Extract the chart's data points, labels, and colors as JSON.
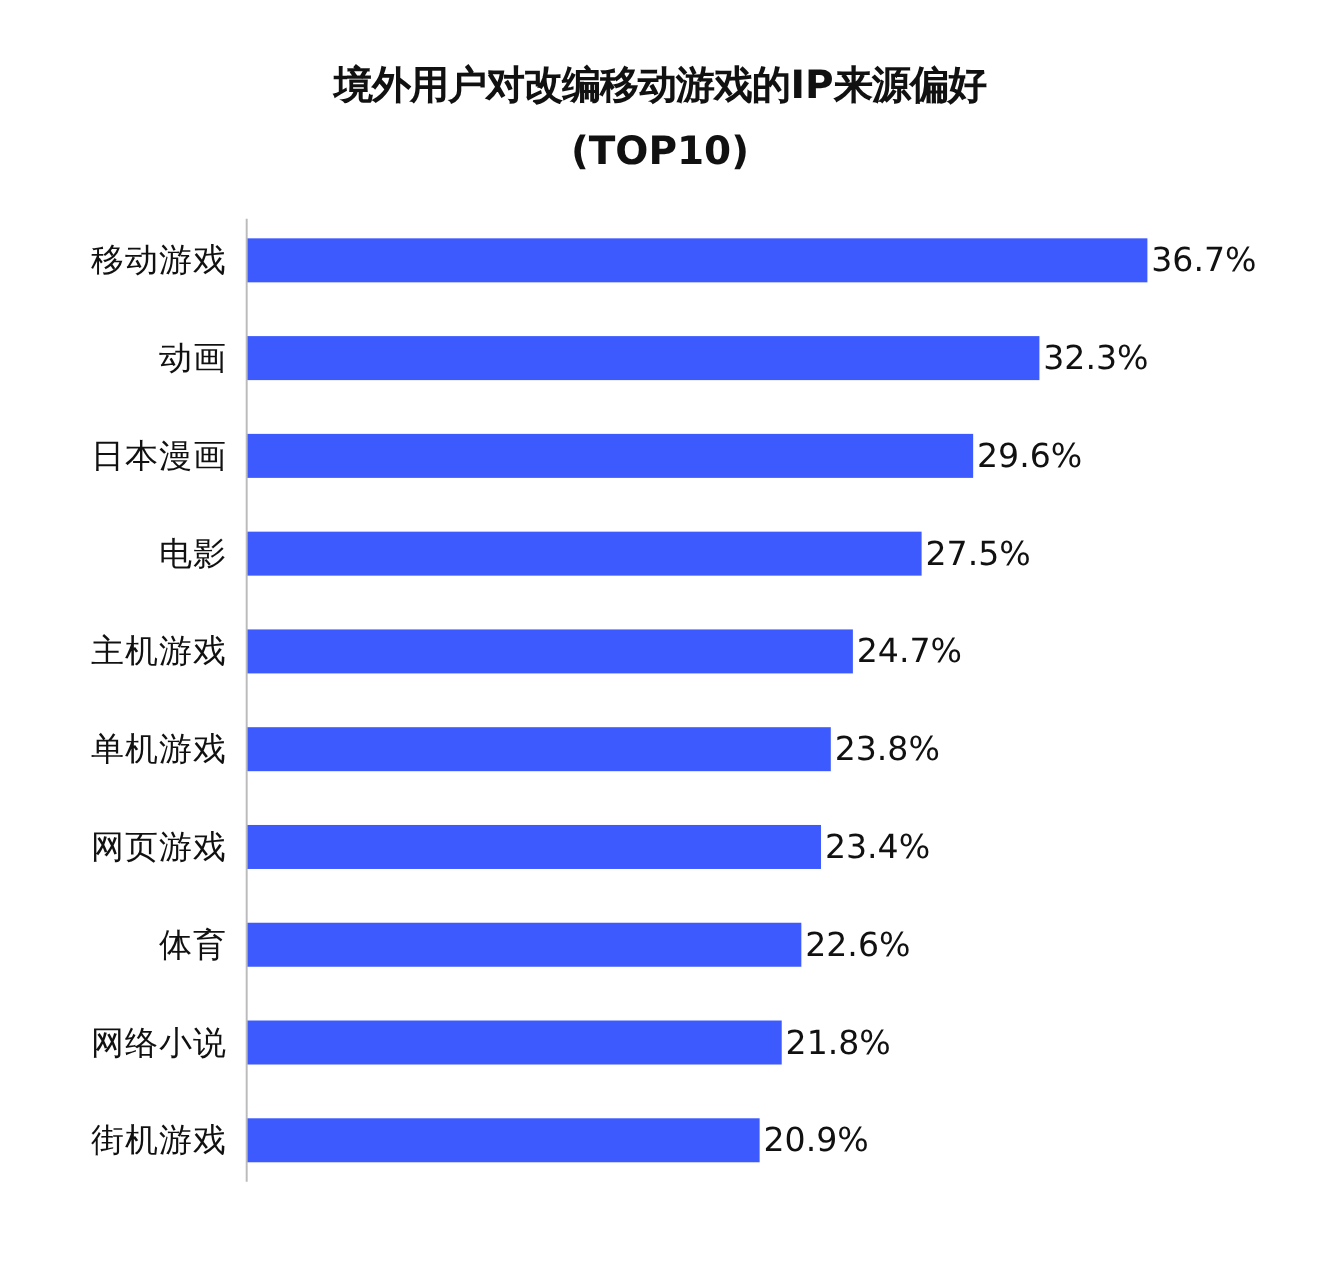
{
  "chart_data": {
    "type": "bar",
    "orientation": "horizontal",
    "title": "境外用户对改编移动游戏的IP来源偏好",
    "subtitle": "(TOP10)",
    "categories": [
      "移动游戏",
      "动画",
      "日本漫画",
      "电影",
      "主机游戏",
      "单机游戏",
      "网页游戏",
      "体育",
      "网络小说",
      "街机游戏"
    ],
    "values": [
      36.7,
      32.3,
      29.6,
      27.5,
      24.7,
      23.8,
      23.4,
      22.6,
      21.8,
      20.9
    ],
    "value_labels": [
      "36.7%",
      "32.3%",
      "29.6%",
      "27.5%",
      "24.7%",
      "23.8%",
      "23.4%",
      "22.6%",
      "21.8%",
      "20.9%"
    ],
    "color": "#3d5afe"
  }
}
